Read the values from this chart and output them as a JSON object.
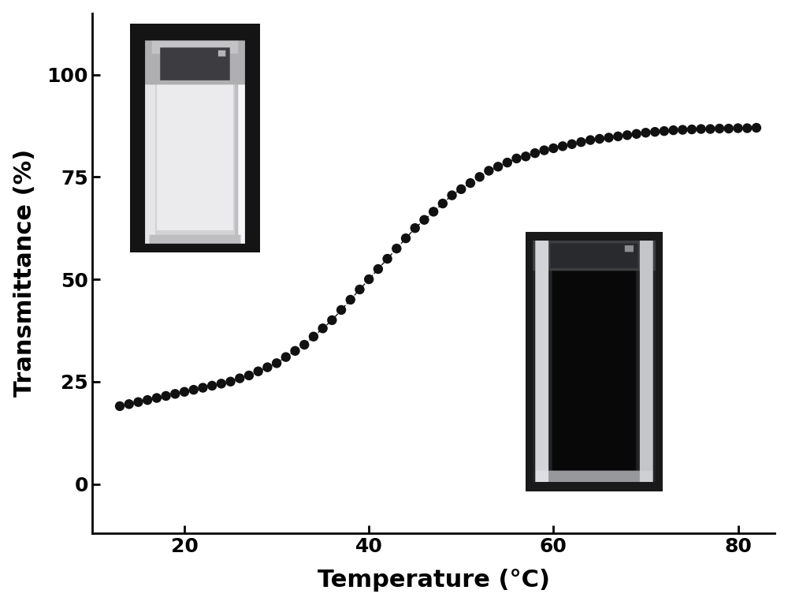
{
  "title": "",
  "xlabel": "Temperature (°C)",
  "ylabel": "Transmittance (%)",
  "xlabel_fontsize": 22,
  "ylabel_fontsize": 22,
  "tick_fontsize": 18,
  "xlim": [
    10,
    84
  ],
  "ylim": [
    -12,
    115
  ],
  "xticks": [
    20,
    40,
    60,
    80
  ],
  "yticks": [
    0,
    25,
    50,
    75,
    100
  ],
  "dot_color": "#111111",
  "dot_size": 80,
  "line_style": "--",
  "line_color": "#111111",
  "line_width": 1.0,
  "temperature": [
    13,
    14,
    15,
    16,
    17,
    18,
    19,
    20,
    21,
    22,
    23,
    24,
    25,
    26,
    27,
    28,
    29,
    30,
    31,
    32,
    33,
    34,
    35,
    36,
    37,
    38,
    39,
    40,
    41,
    42,
    43,
    44,
    45,
    46,
    47,
    48,
    49,
    50,
    51,
    52,
    53,
    54,
    55,
    56,
    57,
    58,
    59,
    60,
    61,
    62,
    63,
    64,
    65,
    66,
    67,
    68,
    69,
    70,
    71,
    72,
    73,
    74,
    75,
    76,
    77,
    78,
    79,
    80,
    81,
    82
  ],
  "transmittance": [
    19.0,
    19.5,
    20.0,
    20.5,
    21.0,
    21.5,
    22.0,
    22.5,
    23.0,
    23.5,
    24.0,
    24.5,
    25.0,
    25.8,
    26.5,
    27.5,
    28.5,
    29.5,
    31.0,
    32.5,
    34.0,
    36.0,
    38.0,
    40.0,
    42.5,
    45.0,
    47.5,
    50.0,
    52.5,
    55.0,
    57.5,
    60.0,
    62.5,
    64.5,
    66.5,
    68.5,
    70.5,
    72.0,
    73.5,
    75.0,
    76.5,
    77.5,
    78.5,
    79.5,
    80.0,
    80.8,
    81.5,
    82.0,
    82.5,
    83.0,
    83.5,
    84.0,
    84.3,
    84.6,
    84.9,
    85.2,
    85.5,
    85.8,
    86.0,
    86.2,
    86.4,
    86.5,
    86.6,
    86.7,
    86.7,
    86.8,
    86.8,
    86.9,
    86.9,
    87.0
  ],
  "background_color": "#ffffff",
  "axis_linewidth": 2.0
}
